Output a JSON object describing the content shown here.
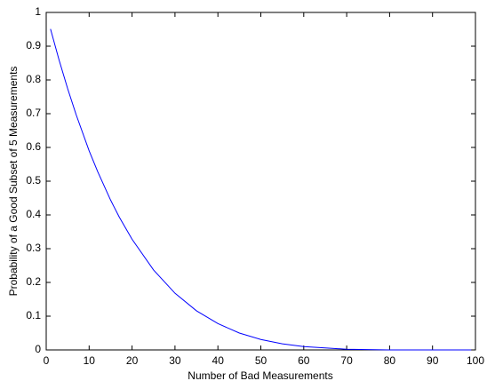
{
  "chart_data": {
    "type": "line",
    "xlabel": "Number of Bad Measurements",
    "ylabel": "Probability of a Good Subset of 5 Measurements",
    "series": [
      {
        "color": "#0000ff",
        "x": [
          1,
          3,
          5,
          7,
          10,
          12,
          15,
          17,
          20,
          25,
          30,
          35,
          40,
          45,
          50,
          55,
          60,
          70,
          80,
          90,
          99
        ],
        "values": [
          0.951,
          0.859,
          0.774,
          0.696,
          0.59,
          0.528,
          0.444,
          0.394,
          0.328,
          0.237,
          0.168,
          0.116,
          0.078,
          0.05,
          0.031,
          0.018,
          0.01,
          0.002,
          0.0,
          0.0,
          0.0
        ]
      }
    ],
    "xlim": [
      0,
      100
    ],
    "xticks": [
      0,
      10,
      20,
      30,
      40,
      50,
      60,
      70,
      80,
      90,
      100
    ],
    "ylim": [
      0,
      1
    ],
    "yticks": [
      0,
      0.1,
      0.2,
      0.3,
      0.4,
      0.5,
      0.6,
      0.7,
      0.8,
      0.9,
      1
    ]
  }
}
